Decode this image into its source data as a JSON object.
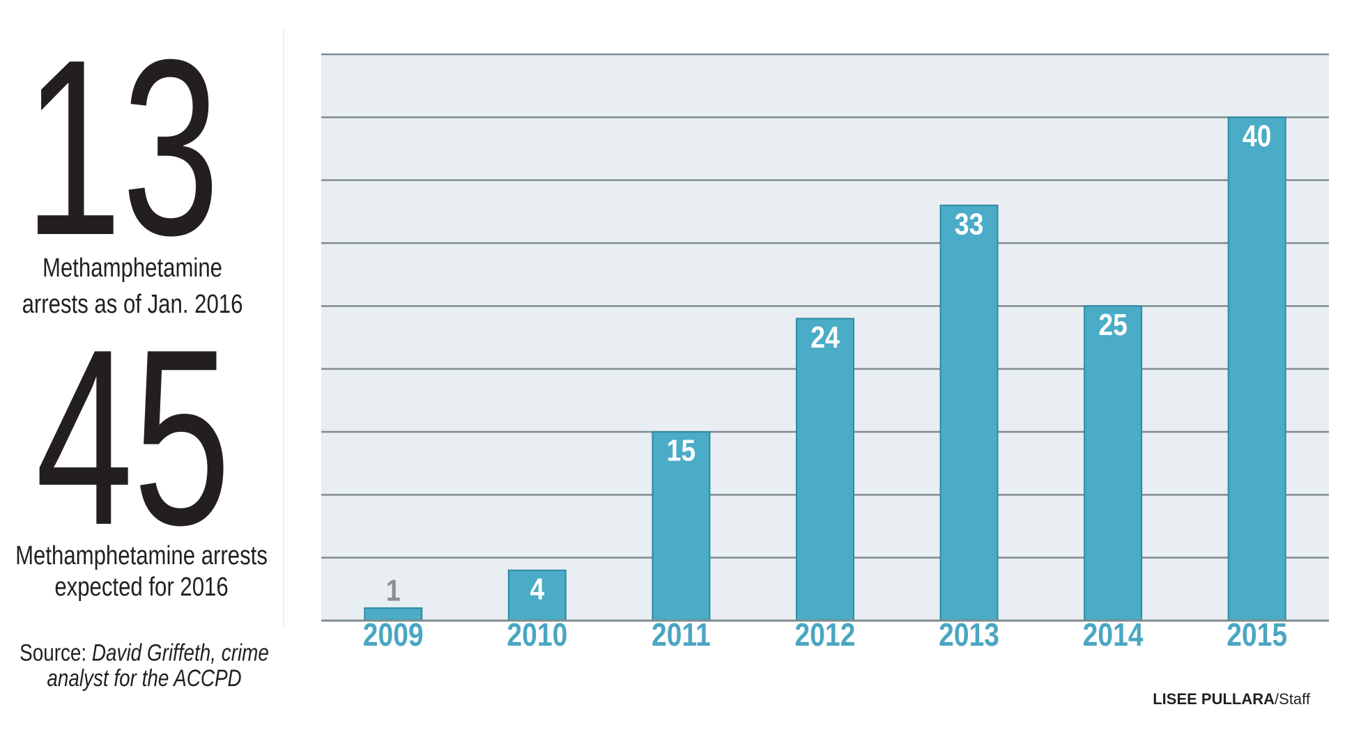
{
  "stats": [
    {
      "number": 13,
      "caption": [
        "Methamphetamine",
        "arrests as of Jan. 2016"
      ]
    },
    {
      "number": 45,
      "caption": [
        "Methamphetamine arrests",
        "expected for 2016"
      ]
    }
  ],
  "source": {
    "prefix": "Source:",
    "lines": [
      "David Griffeth, crime",
      "analyst for the ACCPD"
    ]
  },
  "credit": {
    "name": "LISEE PULLARA",
    "role": "/Staff"
  },
  "chart_data": {
    "type": "bar",
    "categories": [
      "2009",
      "2010",
      "2011",
      "2012",
      "2013",
      "2014",
      "2015"
    ],
    "values": [
      1,
      4,
      15,
      24,
      33,
      25,
      40
    ],
    "color": "#4aacc6",
    "ylim": [
      0,
      45
    ],
    "yticks": [
      0,
      5,
      10,
      15,
      20,
      25,
      30,
      35,
      40,
      45
    ],
    "grid": true
  }
}
